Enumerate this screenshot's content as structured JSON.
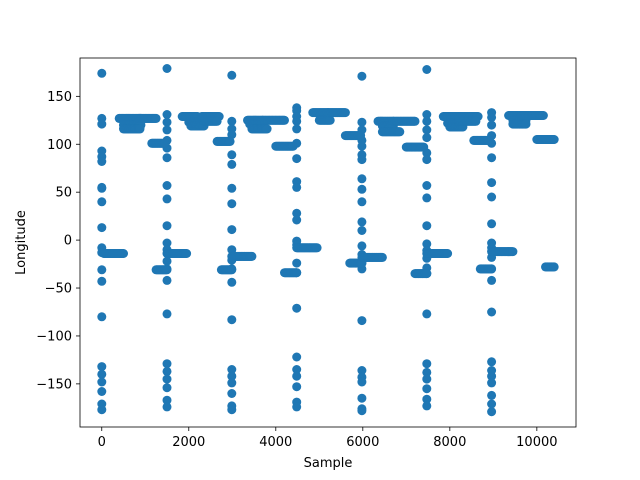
{
  "chart_data": {
    "type": "scatter",
    "title": "",
    "xlabel": "Sample",
    "ylabel": "Longitude",
    "xlim": [
      -500,
      10900
    ],
    "ylim": [
      -195,
      190
    ],
    "xticks": [
      0,
      2000,
      4000,
      6000,
      8000,
      10000
    ],
    "yticks": [
      -150,
      -100,
      -50,
      0,
      50,
      100,
      150
    ],
    "xtick_labels": [
      "0",
      "2000",
      "4000",
      "6000",
      "8000",
      "10000"
    ],
    "ytick_labels": [
      "−150",
      "−100",
      "−50",
      "0",
      "50",
      "100",
      "150"
    ],
    "grid": false,
    "color": "#1f77b4",
    "vertical_columns": [
      {
        "x": 0,
        "y": [
          174,
          127,
          121,
          93,
          87,
          82,
          55,
          54,
          40,
          13,
          -8,
          -13,
          -31,
          -43,
          -80,
          -132,
          -140,
          -148,
          -158,
          -171,
          -177
        ]
      },
      {
        "x": 1500,
        "y": [
          179,
          131,
          123,
          115,
          104,
          96,
          86,
          57,
          43,
          15,
          -3,
          -10,
          -22,
          -30,
          -42,
          -77,
          -129,
          -137,
          -145,
          -154,
          -167,
          -174
        ]
      },
      {
        "x": 2990,
        "y": [
          172,
          124,
          116,
          110,
          89,
          79,
          54,
          38,
          11,
          -10,
          -21,
          -30,
          -44,
          -83,
          -135,
          -142,
          -149,
          -160,
          -173,
          -177
        ]
      },
      {
        "x": 4480,
        "y": [
          138,
          135,
          129,
          124,
          116,
          101,
          85,
          61,
          55,
          28,
          21,
          -1,
          -5,
          -24,
          -34,
          -71,
          -122,
          -135,
          -142,
          -153,
          -169,
          -174
        ]
      },
      {
        "x": 5980,
        "y": [
          171,
          123,
          115,
          104,
          98,
          89,
          84,
          64,
          53,
          40,
          19,
          10,
          -6,
          -15,
          -24,
          -30,
          -84,
          -136,
          -143,
          -148,
          -165,
          -176,
          -178
        ]
      },
      {
        "x": 7470,
        "y": [
          178,
          131,
          124,
          115,
          107,
          91,
          84,
          57,
          44,
          15,
          -4,
          -11,
          -19,
          -29,
          -35,
          -77,
          -129,
          -138,
          -145,
          -155,
          -166,
          -173
        ]
      },
      {
        "x": 8960,
        "y": [
          133,
          128,
          120,
          109,
          101,
          86,
          60,
          45,
          17,
          -3,
          -8,
          -18,
          -30,
          -42,
          -75,
          -127,
          -136,
          -142,
          -149,
          -162,
          -171,
          -179
        ]
      }
    ],
    "horizontal_segments": [
      {
        "x": [
          50,
          500
        ],
        "y": -14
      },
      {
        "x": [
          400,
          900
        ],
        "y": 127
      },
      {
        "x": [
          500,
          900
        ],
        "y": 120
      },
      {
        "x": [
          500,
          880
        ],
        "y": 116
      },
      {
        "x": [
          850,
          1250
        ],
        "y": 127
      },
      {
        "x": [
          1150,
          1450
        ],
        "y": 101
      },
      {
        "x": [
          1250,
          1500
        ],
        "y": -31
      },
      {
        "x": [
          1500,
          1950
        ],
        "y": -14
      },
      {
        "x": [
          1850,
          2200
        ],
        "y": 129
      },
      {
        "x": [
          2000,
          2350
        ],
        "y": 123
      },
      {
        "x": [
          2050,
          2350
        ],
        "y": 119
      },
      {
        "x": [
          2300,
          2700
        ],
        "y": 129
      },
      {
        "x": [
          2350,
          2650
        ],
        "y": 124
      },
      {
        "x": [
          2650,
          2950
        ],
        "y": 103
      },
      {
        "x": [
          2750,
          2990
        ],
        "y": -31
      },
      {
        "x": [
          2990,
          3450
        ],
        "y": -17
      },
      {
        "x": [
          3350,
          3700
        ],
        "y": 125
      },
      {
        "x": [
          3400,
          3700
        ],
        "y": 121
      },
      {
        "x": [
          3450,
          3800
        ],
        "y": 116
      },
      {
        "x": [
          3700,
          4200
        ],
        "y": 125
      },
      {
        "x": [
          4000,
          4400
        ],
        "y": 98
      },
      {
        "x": [
          4200,
          4480
        ],
        "y": -34
      },
      {
        "x": [
          4480,
          4950
        ],
        "y": -8
      },
      {
        "x": [
          4850,
          5200
        ],
        "y": 133
      },
      {
        "x": [
          5000,
          5250
        ],
        "y": 125
      },
      {
        "x": [
          5200,
          5600
        ],
        "y": 133
      },
      {
        "x": [
          5600,
          5950
        ],
        "y": 109
      },
      {
        "x": [
          5700,
          5980
        ],
        "y": -24
      },
      {
        "x": [
          5980,
          6450
        ],
        "y": -18
      },
      {
        "x": [
          6350,
          6700
        ],
        "y": 124
      },
      {
        "x": [
          6450,
          6700
        ],
        "y": 119
      },
      {
        "x": [
          6450,
          6850
        ],
        "y": 113
      },
      {
        "x": [
          6700,
          7200
        ],
        "y": 124
      },
      {
        "x": [
          7000,
          7400
        ],
        "y": 97
      },
      {
        "x": [
          7200,
          7470
        ],
        "y": -35
      },
      {
        "x": [
          7470,
          7950
        ],
        "y": -14
      },
      {
        "x": [
          7850,
          8200
        ],
        "y": 129
      },
      {
        "x": [
          7950,
          8300
        ],
        "y": 122
      },
      {
        "x": [
          8000,
          8300
        ],
        "y": 118
      },
      {
        "x": [
          8200,
          8650
        ],
        "y": 129
      },
      {
        "x": [
          8250,
          8600
        ],
        "y": 124
      },
      {
        "x": [
          8550,
          8900
        ],
        "y": 104
      },
      {
        "x": [
          8700,
          8960
        ],
        "y": -30
      },
      {
        "x": [
          8960,
          9450
        ],
        "y": -12
      },
      {
        "x": [
          9350,
          9700
        ],
        "y": 130
      },
      {
        "x": [
          9450,
          9750
        ],
        "y": 125
      },
      {
        "x": [
          9450,
          9750
        ],
        "y": 121
      },
      {
        "x": [
          9700,
          10150
        ],
        "y": 130
      },
      {
        "x": [
          10000,
          10400
        ],
        "y": 105
      },
      {
        "x": [
          10200,
          10400
        ],
        "y": -28
      }
    ]
  }
}
